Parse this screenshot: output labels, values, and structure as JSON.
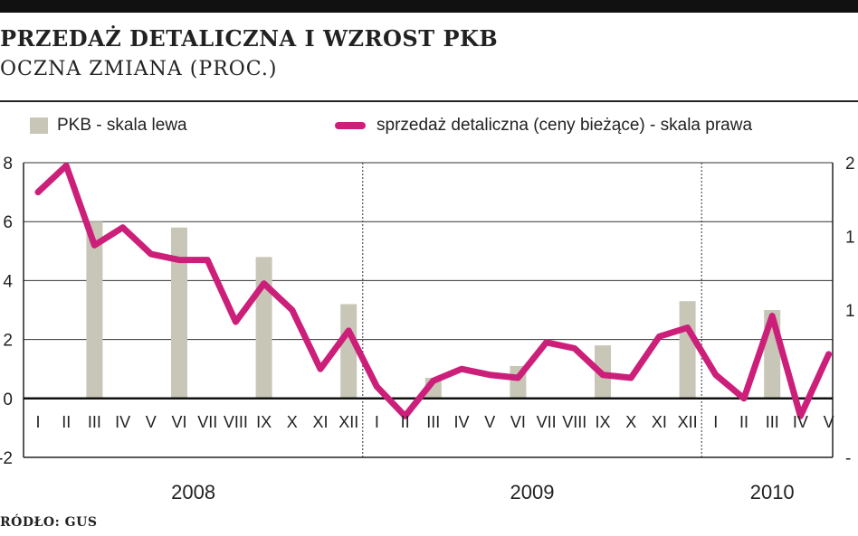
{
  "header": {
    "title": "przedaż detaliczna i wzrost PKB",
    "subtitle": "oczna zmiana (proc.)",
    "source": "ródło: GUS"
  },
  "legend": {
    "bars_label": "PKB - skala lewa",
    "line_label": "sprzedaż detaliczna (ceny bieżące) - skala prawa"
  },
  "colors": {
    "bars": "#c8c6b6",
    "line": "#cc1f7a"
  },
  "chart_data": {
    "type": "bar",
    "categories": [
      "I",
      "II",
      "III",
      "IV",
      "V",
      "VI",
      "VII",
      "VIII",
      "IX",
      "X",
      "XI",
      "XII",
      "I",
      "II",
      "III",
      "IV",
      "V",
      "VI",
      "VII",
      "VIII",
      "IX",
      "X",
      "XI",
      "XII",
      "I",
      "II",
      "III",
      "IV",
      "V"
    ],
    "year_labels": [
      {
        "label": "2008",
        "first_index": 0,
        "last_index": 11
      },
      {
        "label": "2009",
        "first_index": 12,
        "last_index": 23
      },
      {
        "label": "2010",
        "first_index": 24,
        "last_index": 28
      }
    ],
    "left_axis": {
      "ylim": [
        -2,
        8
      ],
      "ticks": [
        "-2",
        "0",
        "2",
        "4",
        "6",
        "8"
      ]
    },
    "right_axis": {
      "ticks": [
        "-",
        "",
        "1",
        "1",
        "2"
      ]
    },
    "series": [
      {
        "name": "PKB - skala lewa",
        "kind": "bar",
        "values": [
          null,
          null,
          6.0,
          null,
          null,
          5.8,
          null,
          null,
          4.8,
          null,
          null,
          3.2,
          null,
          null,
          0.7,
          null,
          null,
          1.1,
          null,
          null,
          1.8,
          null,
          null,
          3.3,
          null,
          null,
          3.0,
          null,
          null
        ]
      },
      {
        "name": "sprzedaż detaliczna (ceny bieżące) - skala prawa",
        "kind": "line",
        "values_on_left_scale": [
          7.0,
          7.9,
          5.2,
          5.8,
          4.9,
          4.7,
          4.7,
          2.6,
          3.9,
          3.0,
          1.0,
          2.3,
          0.4,
          -0.6,
          0.6,
          1.0,
          0.8,
          0.7,
          1.9,
          1.7,
          0.8,
          0.7,
          2.1,
          2.4,
          0.8,
          0.0,
          2.8,
          -0.6,
          1.5
        ]
      }
    ],
    "grid": true,
    "legend_position": "top"
  }
}
